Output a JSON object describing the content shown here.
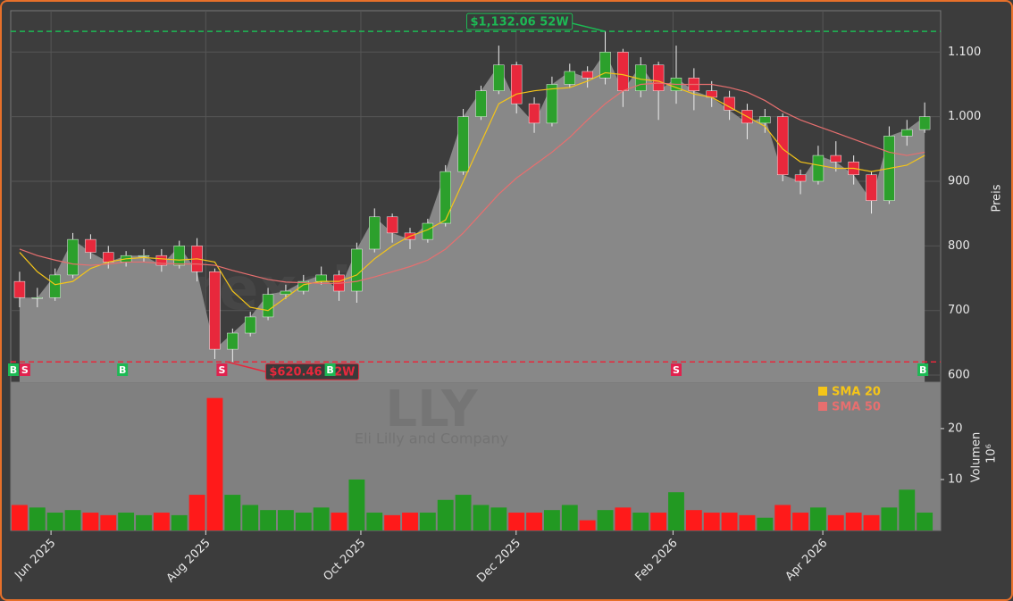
{
  "chart_data": [
    {
      "type": "candlestick",
      "title": "forexsignale.trade",
      "symbol": "LLY",
      "subtitle": "Eli Lilly and Company",
      "ylabel": "Preis",
      "x": [
        0.5,
        1.5,
        2.5,
        3.5,
        4.5,
        5.5,
        6.5,
        7.5,
        8.5,
        9.5,
        10.5,
        11.5,
        12.5,
        13.5,
        14.5,
        15.5,
        16.5,
        17.5,
        18.5,
        19.5,
        20.5,
        21.5,
        22.5,
        23.5,
        24.5,
        25.5,
        26.5,
        27.5,
        28.5,
        29.5,
        30.5,
        31.5,
        32.5,
        33.5,
        34.5,
        35.5,
        36.5,
        37.5,
        38.5,
        39.5,
        40.5,
        41.5,
        42.5,
        43.5,
        44.5,
        45.5,
        46.5,
        47.5,
        48.5,
        49.5,
        50.5,
        51.5
      ],
      "open": [
        745,
        720,
        720,
        755,
        810,
        790,
        775,
        785,
        785,
        770,
        800,
        760,
        640,
        665,
        690,
        725,
        730,
        745,
        755,
        730,
        795,
        845,
        820,
        810,
        835,
        915,
        1000,
        1040,
        1080,
        1020,
        990,
        1050,
        1070,
        1060,
        1100,
        1040,
        1080,
        1040,
        1060,
        1040,
        1030,
        1010,
        990,
        1000,
        910,
        900,
        940,
        930,
        910,
        870,
        970,
        980
      ],
      "high": [
        760,
        735,
        765,
        820,
        818,
        800,
        792,
        795,
        795,
        808,
        812,
        765,
        672,
        698,
        735,
        740,
        755,
        768,
        762,
        805,
        858,
        850,
        828,
        842,
        925,
        1012,
        1048,
        1110,
        1085,
        1030,
        1062,
        1082,
        1078,
        1132.06,
        1105,
        1092,
        1085,
        1110,
        1075,
        1055,
        1040,
        1020,
        1012,
        1005,
        918,
        955,
        962,
        940,
        915,
        985,
        995,
        1022
      ],
      "low": [
        705,
        705,
        715,
        750,
        780,
        765,
        768,
        775,
        760,
        765,
        745,
        625,
        620.46,
        660,
        685,
        718,
        725,
        740,
        715,
        712,
        790,
        805,
        795,
        805,
        830,
        910,
        995,
        1035,
        1005,
        975,
        985,
        1045,
        1045,
        1050,
        1015,
        1030,
        995,
        1020,
        1010,
        1015,
        995,
        965,
        975,
        900,
        880,
        895,
        915,
        895,
        850,
        865,
        955,
        975
      ],
      "close": [
        720,
        720,
        755,
        810,
        790,
        775,
        785,
        785,
        770,
        800,
        760,
        640,
        665,
        690,
        725,
        730,
        745,
        755,
        730,
        795,
        845,
        820,
        810,
        835,
        915,
        1000,
        1040,
        1080,
        1020,
        990,
        1050,
        1070,
        1060,
        1100,
        1040,
        1080,
        1040,
        1060,
        1040,
        1030,
        1010,
        990,
        1000,
        910,
        900,
        940,
        930,
        910,
        870,
        970,
        980,
        1000
      ],
      "up_color": "#2ca02c",
      "down_color": "#e8283c",
      "area_color": "#888888",
      "series": [
        {
          "name": "SMA 20",
          "color": "#f5c518",
          "values": [
            790,
            760,
            740,
            745,
            765,
            775,
            780,
            782,
            780,
            778,
            780,
            775,
            730,
            705,
            700,
            720,
            740,
            745,
            745,
            755,
            780,
            800,
            815,
            825,
            840,
            900,
            960,
            1020,
            1035,
            1040,
            1043,
            1045,
            1055,
            1068,
            1065,
            1058,
            1055,
            1045,
            1035,
            1030,
            1015,
            1000,
            985,
            950,
            930,
            925,
            920,
            920,
            915,
            920,
            925,
            940
          ]
        },
        {
          "name": "SMA 50",
          "color": "#e76f6f",
          "values": [
            795,
            785,
            778,
            772,
            770,
            772,
            775,
            775,
            773,
            772,
            772,
            770,
            762,
            755,
            748,
            744,
            743,
            742,
            742,
            745,
            752,
            760,
            768,
            778,
            795,
            820,
            850,
            880,
            905,
            925,
            945,
            968,
            995,
            1020,
            1040,
            1050,
            1052,
            1050,
            1050,
            1050,
            1045,
            1038,
            1025,
            1008,
            995,
            985,
            975,
            965,
            955,
            945,
            940,
            945
          ]
        }
      ],
      "annotations": [
        {
          "value": 1132.06,
          "label": "$1,132.06 52W",
          "x": 33.5,
          "color": "#1db954"
        },
        {
          "value": 620.46,
          "label": "$620.46 52W",
          "x": 12.2,
          "color": "#e8283c"
        }
      ],
      "signals": [
        {
          "x": 0.15,
          "label": "B"
        },
        {
          "x": 0.8,
          "label": "S"
        },
        {
          "x": 6.3,
          "label": "B"
        },
        {
          "x": 11.9,
          "label": "S"
        },
        {
          "x": 18,
          "label": "B"
        },
        {
          "x": 37.5,
          "label": "S"
        },
        {
          "x": 51.4,
          "label": "B"
        }
      ],
      "xlim": [
        0,
        52.4
      ],
      "xticks": [
        {
          "value": 2.27,
          "label": "Jun 2025"
        },
        {
          "value": 10.99,
          "label": "Aug 2025"
        },
        {
          "value": 19.73,
          "label": "Oct 2025"
        },
        {
          "value": 28.48,
          "label": "Dec 2025"
        },
        {
          "value": 37.32,
          "label": "Feb 2026"
        },
        {
          "value": 45.76,
          "label": "Apr 2026"
        }
      ],
      "ylim": [
        589,
        1164
      ],
      "yticks": [
        600,
        700,
        800,
        900,
        {
          "value": 1000,
          "label": "1.000"
        },
        {
          "value": 1100,
          "label": "1.100"
        }
      ],
      "grid": true,
      "legend": "upper right"
    },
    {
      "type": "bar",
      "ylabel": "Volumen",
      "yunit": "10⁶",
      "values": [
        5,
        4.5,
        3.5,
        4,
        3.5,
        3,
        3.5,
        3,
        3.5,
        3,
        7,
        26,
        7,
        5,
        4,
        4,
        3.5,
        4.5,
        3.5,
        10,
        3.5,
        3,
        3.5,
        3.5,
        6,
        7,
        5,
        4.5,
        3.5,
        3.5,
        4,
        5,
        2,
        4,
        4.5,
        3.5,
        3.5,
        7.5,
        4,
        3.5,
        3.5,
        3,
        2.5,
        5,
        3.5,
        4.5,
        3,
        3.5,
        3,
        4.5,
        8,
        3.5
      ],
      "up_color": "#229922",
      "down_color": "#ff1a1a",
      "ylim": [
        0,
        29.1
      ],
      "yticks": [
        10,
        20
      ]
    }
  ]
}
